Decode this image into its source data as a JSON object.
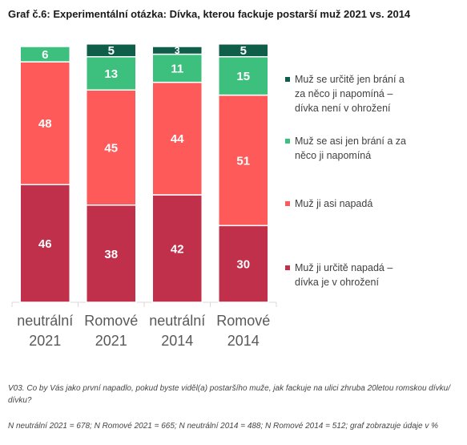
{
  "title": "Graf č.6: Experimentální otázka: Dívka, kterou fackuje postarší muž 2021 vs. 2014",
  "colors": {
    "dark_green": "#0e5e4a",
    "light_green": "#3dbf7d",
    "light_red": "#ff5a5a",
    "dark_red": "#c0304a",
    "gridline": "#d9d9d9",
    "category_text": "#595959"
  },
  "chart_data": {
    "type": "bar",
    "stacked": true,
    "categories": [
      [
        "neutrální",
        "2021"
      ],
      [
        "Romové",
        "2021"
      ],
      [
        "neutrální",
        "2014"
      ],
      [
        "Romové",
        "2014"
      ]
    ],
    "series": [
      {
        "name": "Muž ji určitě napadá – dívka je v ohrožení",
        "color": "#c0304a",
        "values": [
          46,
          38,
          42,
          30
        ]
      },
      {
        "name": "Muž ji asi napadá",
        "color": "#ff5a5a",
        "values": [
          48,
          45,
          44,
          51
        ]
      },
      {
        "name": "Muž se asi jen brání a za něco ji napomíná",
        "color": "#3dbf7d",
        "values": [
          6,
          13,
          11,
          15
        ]
      },
      {
        "name": "Muž se určitě jen brání a za něco ji napomíná – dívka není v ohrožení",
        "color": "#0e5e4a",
        "values": [
          0,
          5,
          3,
          5
        ]
      }
    ],
    "legend_order": [
      3,
      2,
      1,
      0
    ],
    "legend_position": "right",
    "ylim": [
      0,
      100
    ],
    "grid": true
  },
  "note1": "V03. Co by Vás jako první napadlo, pokud byste viděl(a) postaršího muže, jak fackuje na ulici zhruba 20letou romskou dívku/ dívku?",
  "note2": "N neutrální 2021 = 678; N Romové 2021 = 665; N neutrální 2014 = 488; N Romové 2014 = 512; graf zobrazuje údaje v %"
}
